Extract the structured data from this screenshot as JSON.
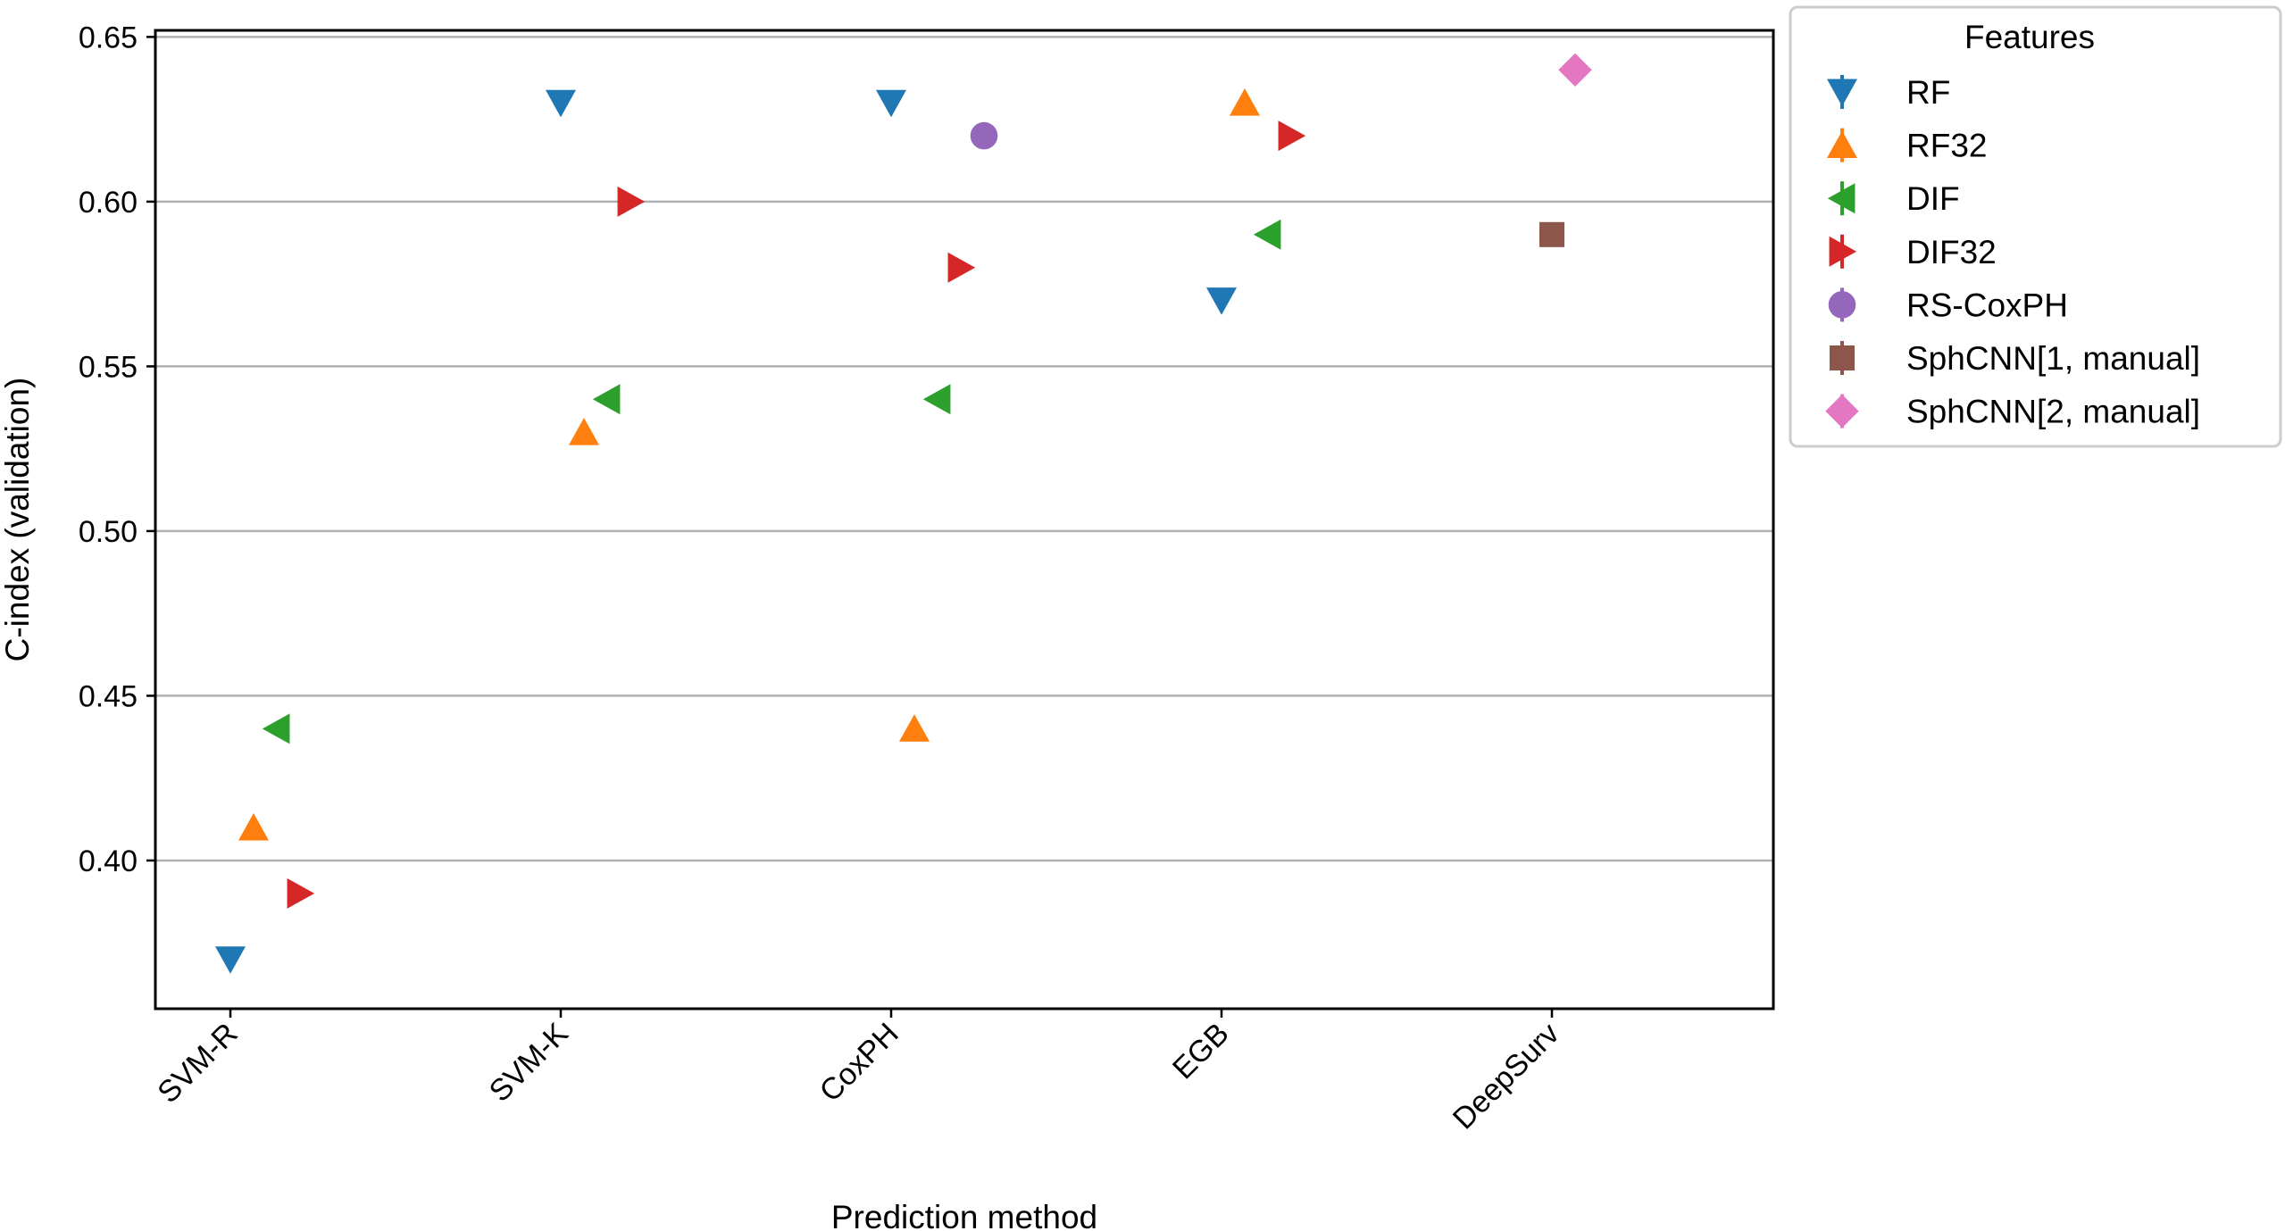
{
  "chart_data": {
    "type": "scatter",
    "xlabel": "Prediction method",
    "ylabel": "C-index (validation)",
    "categories": [
      "SVM-R",
      "SVM-K",
      "CoxPH",
      "EGB",
      "DeepSurv"
    ],
    "ylim": [
      0.355,
      0.652
    ],
    "yticks": [
      0.4,
      0.45,
      0.5,
      0.55,
      0.6,
      0.65
    ],
    "ytick_labels": [
      "0.40",
      "0.45",
      "0.50",
      "0.55",
      "0.60",
      "0.65"
    ],
    "grid": "horizontal",
    "legend": {
      "title": "Features",
      "placement": "outside-right"
    },
    "series": [
      {
        "name": "RF",
        "marker": "triangle-down",
        "color": "#1f77b4",
        "offset": 0,
        "values": [
          0.37,
          0.63,
          0.63,
          0.57,
          null
        ]
      },
      {
        "name": "RF32",
        "marker": "triangle-up",
        "color": "#ff7f0e",
        "offset": 1,
        "values": [
          0.41,
          0.53,
          0.44,
          0.63,
          null
        ]
      },
      {
        "name": "DIF",
        "marker": "triangle-left",
        "color": "#2ca02c",
        "offset": 2,
        "values": [
          0.44,
          0.54,
          0.54,
          0.59,
          null
        ]
      },
      {
        "name": "DIF32",
        "marker": "triangle-right",
        "color": "#d62728",
        "offset": 3,
        "values": [
          0.39,
          0.6,
          0.58,
          0.62,
          null
        ]
      },
      {
        "name": "RS-CoxPH",
        "marker": "circle",
        "color": "#9467bd",
        "offset": 4,
        "values": [
          null,
          null,
          0.62,
          null,
          null
        ]
      },
      {
        "name": "SphCNN[1, manual]",
        "marker": "square",
        "color": "#8c564b",
        "offset": 0,
        "values": [
          null,
          null,
          null,
          null,
          0.59
        ]
      },
      {
        "name": "SphCNN[2, manual]",
        "marker": "diamond",
        "color": "#e377c2",
        "offset": 1,
        "values": [
          null,
          null,
          null,
          null,
          0.64
        ]
      }
    ]
  }
}
